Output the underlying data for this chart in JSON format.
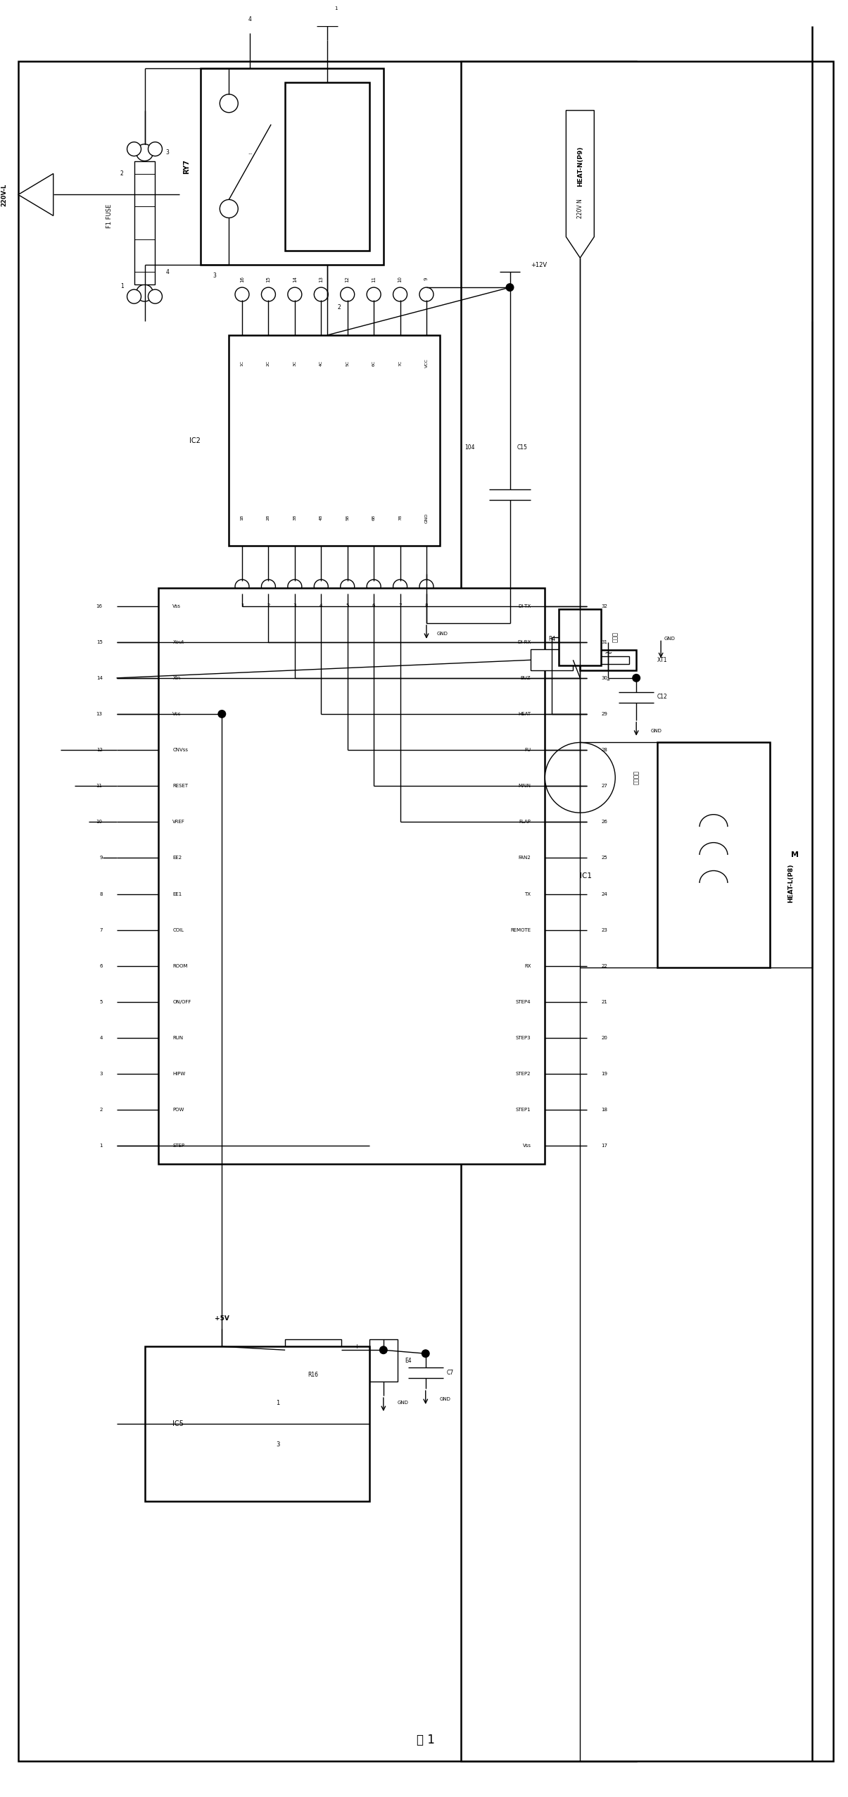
{
  "title": "图 1",
  "bg_color": "#ffffff",
  "fig_width": 12.05,
  "fig_height": 25.52,
  "dpi": 100,
  "xlim": [
    0,
    120
  ],
  "ylim": [
    0,
    252
  ],
  "ic2_top_labels": [
    "1C",
    "2C",
    "3C",
    "4C",
    "5C",
    "6C",
    "7C",
    "VCC"
  ],
  "ic2_bot_labels": [
    "1B",
    "2B",
    "3B",
    "4B",
    "5B",
    "6B",
    "7B",
    "GND"
  ],
  "ic2_top_pins": [
    "16",
    "15",
    "14",
    "13",
    "12",
    "11",
    "10",
    "9"
  ],
  "ic2_bot_pins": [
    "1",
    "2",
    "3",
    "4",
    "5",
    "6",
    "7",
    "8"
  ],
  "ic1_right_labels": [
    "DI-TX",
    "DI-RX",
    "BUZ",
    "HEAT",
    "FU",
    "MAIN",
    "FLAP",
    "FAN2",
    "TX",
    "REMOTE",
    "RX",
    "STEP4",
    "STEP3",
    "STEP2",
    "STEP1",
    "Vss"
  ],
  "ic1_right_pins": [
    "32",
    "31",
    "30",
    "29",
    "28",
    "27",
    "26",
    "25",
    "24",
    "23",
    "22",
    "21",
    "20",
    "19",
    "18",
    "17"
  ],
  "ic1_left_labels": [
    "STEP",
    "POW",
    "HIPW",
    "RUN",
    "ON/OFF",
    "ROOM",
    "COIL",
    "EE1",
    "EE2",
    "VREF",
    "RESET",
    "CNVss",
    "Vcc",
    "Xin",
    "Xout",
    "Vss"
  ],
  "ic1_left_pins": [
    "1",
    "2",
    "3",
    "4",
    "5",
    "6",
    "7",
    "8",
    "9",
    "10",
    "11",
    "12",
    "13",
    "14",
    "15",
    "16"
  ]
}
